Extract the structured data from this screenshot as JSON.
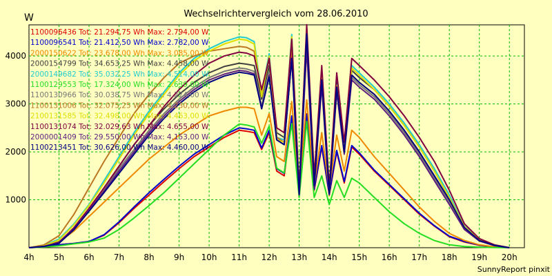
{
  "chart_data": {
    "type": "line",
    "title": "Wechselrichtervergleich vom 28.06.2010",
    "ylabel": "W",
    "credit": "SunnyReport pinxit",
    "x_ticks": [
      "4h",
      "5h",
      "6h",
      "7h",
      "8h",
      "9h",
      "10h",
      "11h",
      "12h",
      "13h",
      "14h",
      "15h",
      "16h",
      "17h",
      "18h",
      "19h",
      "20h"
    ],
    "y_ticks": [
      1000,
      2000,
      3000,
      4000
    ],
    "xlim": [
      4,
      20.5
    ],
    "ylim": [
      0,
      4650
    ],
    "grid": true,
    "legend_position": "top-left",
    "x": [
      4,
      4.5,
      5,
      5.5,
      6,
      6.5,
      7,
      7.5,
      8,
      8.5,
      9,
      9.5,
      10,
      10.5,
      11,
      11.25,
      11.5,
      11.75,
      12,
      12.25,
      12.5,
      12.75,
      13,
      13.25,
      13.5,
      13.75,
      14,
      14.25,
      14.5,
      14.75,
      15,
      15.5,
      16,
      16.5,
      17,
      17.5,
      18,
      18.5,
      19,
      19.5,
      20
    ],
    "series": [
      {
        "name": "1100096436 Tot: 21.294,75 Wh Max: 2.794,00 W",
        "color": "#dd0000",
        "values": [
          0,
          20,
          60,
          90,
          130,
          260,
          520,
          820,
          1100,
          1380,
          1650,
          1900,
          2100,
          2300,
          2450,
          2430,
          2400,
          2050,
          2400,
          1600,
          1500,
          2700,
          1100,
          2794,
          1200,
          2100,
          1100,
          2000,
          1350,
          2100,
          1950,
          1600,
          1300,
          1000,
          700,
          450,
          230,
          120,
          50,
          15,
          0
        ]
      },
      {
        "name": "1100096541 Tot: 21.412,50 Wh Max: 2.782,00 W",
        "color": "#0000cc",
        "values": [
          0,
          20,
          60,
          90,
          130,
          270,
          540,
          850,
          1150,
          1430,
          1700,
          1950,
          2150,
          2350,
          2500,
          2480,
          2450,
          2080,
          2450,
          1650,
          1550,
          2750,
          1120,
          2782,
          1220,
          2130,
          1120,
          2030,
          1380,
          2130,
          1980,
          1620,
          1320,
          1020,
          720,
          460,
          240,
          130,
          55,
          15,
          0
        ]
      },
      {
        "name": "2000150622 Tot: 23.678,00 Wh Max: 3.085,00 W",
        "color": "#ee8800",
        "values": [
          0,
          40,
          120,
          350,
          650,
          950,
          1250,
          1550,
          1850,
          2100,
          2350,
          2550,
          2750,
          2850,
          2930,
          2930,
          2900,
          2350,
          2800,
          1900,
          1800,
          3050,
          1200,
          3085,
          1300,
          2400,
          1200,
          2350,
          1600,
          2450,
          2300,
          1900,
          1550,
          1200,
          850,
          550,
          300,
          150,
          60,
          20,
          0
        ]
      },
      {
        "name": "2000154799 Tot: 34.653,25 Wh Max: 4.458,00 W",
        "color": "#404040",
        "values": [
          0,
          30,
          120,
          400,
          800,
          1250,
          1700,
          2150,
          2550,
          2900,
          3200,
          3450,
          3650,
          3780,
          3850,
          3830,
          3800,
          3100,
          3800,
          2400,
          2300,
          4200,
          1200,
          4458,
          1400,
          3600,
          1200,
          3450,
          2100,
          3700,
          3550,
          3300,
          2950,
          2550,
          2100,
          1600,
          1050,
          450,
          170,
          60,
          0
        ]
      },
      {
        "name": "2000149682 Tot: 35.032,25 Wh Max: 4.514,00 W",
        "color": "#22cccc",
        "values": [
          0,
          50,
          180,
          500,
          900,
          1400,
          1900,
          2400,
          2850,
          3250,
          3650,
          3950,
          4150,
          4300,
          4400,
          4380,
          4300,
          3200,
          4050,
          2300,
          2250,
          4450,
          1200,
          4514,
          1350,
          3650,
          1100,
          3400,
          2050,
          3800,
          3650,
          3350,
          3000,
          2600,
          2150,
          1650,
          1100,
          450,
          160,
          50,
          0
        ]
      },
      {
        "name": "1100129553 Tot: 17.324,00 Wh Max: 2.639,00 W",
        "color": "#22dd22",
        "values": [
          0,
          15,
          40,
          80,
          120,
          200,
          380,
          620,
          880,
          1150,
          1450,
          1750,
          2050,
          2350,
          2580,
          2560,
          2520,
          2180,
          2540,
          1660,
          1560,
          2590,
          1050,
          2639,
          1050,
          1500,
          900,
          1400,
          1050,
          1450,
          1350,
          1050,
          750,
          500,
          300,
          150,
          60,
          25,
          10,
          5,
          0
        ]
      },
      {
        "name": "1100130966 Tot: 30.038,75 Wh Max: 4.274,00 W",
        "color": "#777777",
        "values": [
          0,
          30,
          100,
          400,
          800,
          1200,
          1650,
          2050,
          2450,
          2800,
          3100,
          3350,
          3550,
          3680,
          3750,
          3730,
          3680,
          2950,
          3650,
          2300,
          2200,
          4000,
          1150,
          4274,
          1300,
          3450,
          1150,
          3300,
          2000,
          3550,
          3400,
          3150,
          2800,
          2400,
          1950,
          1450,
          950,
          400,
          150,
          50,
          0
        ]
      },
      {
        "name": "1100131006 Tot: 32.075,25 Wh Max: 4.230,00 W",
        "color": "#bb7722",
        "values": [
          0,
          60,
          250,
          700,
          1250,
          1800,
          2300,
          2800,
          3200,
          3550,
          3850,
          4000,
          4100,
          4150,
          4200,
          4180,
          4100,
          3200,
          3950,
          2300,
          2200,
          4150,
          1150,
          4230,
          1300,
          3450,
          1100,
          3300,
          2000,
          3600,
          3450,
          3200,
          2850,
          2450,
          2000,
          1500,
          1000,
          420,
          160,
          50,
          0
        ]
      },
      {
        "name": "2100131585 Tot: 32.498,00 Wh Max: 4.463,00 W",
        "color": "#dddd00",
        "values": [
          0,
          40,
          160,
          480,
          880,
          1350,
          1850,
          2350,
          2800,
          3200,
          3600,
          3900,
          4100,
          4250,
          4350,
          4330,
          4250,
          3150,
          4000,
          2250,
          2200,
          4400,
          1180,
          4463,
          1320,
          3600,
          1080,
          3380,
          2030,
          3750,
          3600,
          3300,
          2950,
          2550,
          2100,
          1600,
          1050,
          440,
          160,
          50,
          0
        ]
      },
      {
        "name": "1100131074 Tot: 32.029,63 Wh Max: 4.655,00 W",
        "color": "#800040",
        "values": [
          0,
          30,
          110,
          420,
          820,
          1250,
          1700,
          2150,
          2550,
          2950,
          3300,
          3600,
          3850,
          4000,
          4080,
          4060,
          4000,
          3300,
          3950,
          2500,
          2400,
          4350,
          1250,
          4655,
          1500,
          3800,
          1250,
          3650,
          2200,
          3950,
          3800,
          3500,
          3150,
          2750,
          2300,
          1800,
          1200,
          500,
          190,
          60,
          0
        ]
      },
      {
        "name": "2000001409 Tot: 29.550,00 Wh Max: 4.153,00 W",
        "color": "#602080",
        "values": [
          0,
          30,
          100,
          390,
          780,
          1180,
          1600,
          2000,
          2400,
          2750,
          3050,
          3300,
          3500,
          3620,
          3700,
          3680,
          3630,
          2900,
          3600,
          2250,
          2150,
          3950,
          1100,
          4153,
          1250,
          3380,
          1100,
          3250,
          1950,
          3500,
          3350,
          3100,
          2750,
          2350,
          1900,
          1400,
          900,
          380,
          140,
          45,
          0
        ]
      },
      {
        "name": "1100213451 Tot: 30.626,00 Wh Max: 4.460,00 W",
        "color": "#000080",
        "values": [
          0,
          25,
          90,
          380,
          760,
          1150,
          1550,
          1950,
          2350,
          2700,
          3000,
          3250,
          3450,
          3580,
          3660,
          3640,
          3600,
          2900,
          3560,
          2250,
          2150,
          3950,
          1120,
          4460,
          1300,
          3500,
          1120,
          3350,
          2000,
          3600,
          3450,
          3200,
          2850,
          2450,
          2000,
          1500,
          1000,
          420,
          150,
          48,
          0
        ]
      }
    ]
  }
}
